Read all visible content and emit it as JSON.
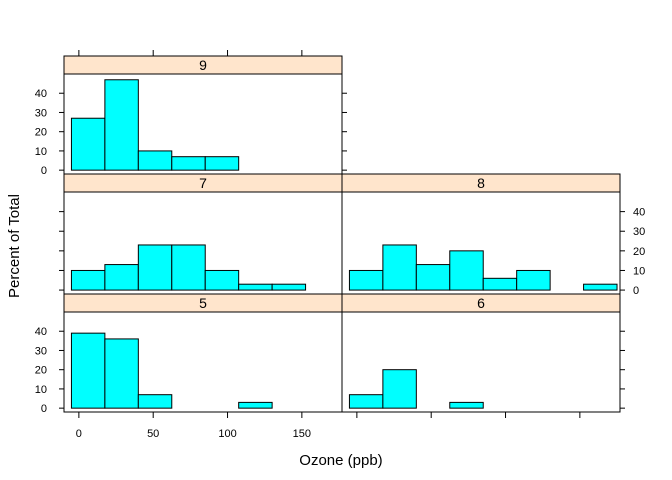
{
  "chart_data": {
    "type": "bar",
    "layout": "trellis histogram, 2 columns x 3 rows",
    "xlabel": "Ozone (ppb)",
    "ylabel": "Percent of Total",
    "x_ticks": [
      0,
      50,
      100,
      150
    ],
    "y_ticks": [
      0,
      10,
      20,
      30,
      40
    ],
    "xlim": [
      -10,
      177
    ],
    "ylim": [
      -2,
      50
    ],
    "bin_edges": [
      -5,
      17.5,
      40,
      62.5,
      85,
      107.5,
      130,
      152.5,
      175
    ],
    "colors": {
      "bar_fill": "#00ffff",
      "strip_fill": "#ffe5cc"
    },
    "panels": [
      {
        "label": "9",
        "values": [
          27,
          47,
          10,
          7,
          7,
          0,
          0,
          0
        ]
      },
      {
        "label": "7",
        "values": [
          10,
          13,
          23,
          23,
          10,
          3,
          3,
          0
        ]
      },
      {
        "label": "8",
        "values": [
          10,
          23,
          13,
          20,
          6,
          10,
          0,
          3
        ]
      },
      {
        "label": "5",
        "values": [
          39,
          36,
          7,
          0,
          0,
          3,
          0,
          0
        ]
      },
      {
        "label": "6",
        "values": [
          7,
          20,
          0,
          3,
          0,
          0,
          0,
          0
        ]
      }
    ]
  }
}
